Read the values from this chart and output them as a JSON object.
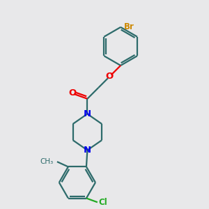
{
  "bg_color": "#e8e8ea",
  "bond_color": "#2d6b6b",
  "bond_width": 1.6,
  "n_color": "#0000ee",
  "o_color": "#ee0000",
  "br_color": "#cc8800",
  "cl_color": "#22aa22",
  "font_size": 8.5,
  "figsize": [
    3.0,
    3.0
  ],
  "dpi": 100,
  "xlim": [
    0,
    10
  ],
  "ylim": [
    0,
    10
  ]
}
